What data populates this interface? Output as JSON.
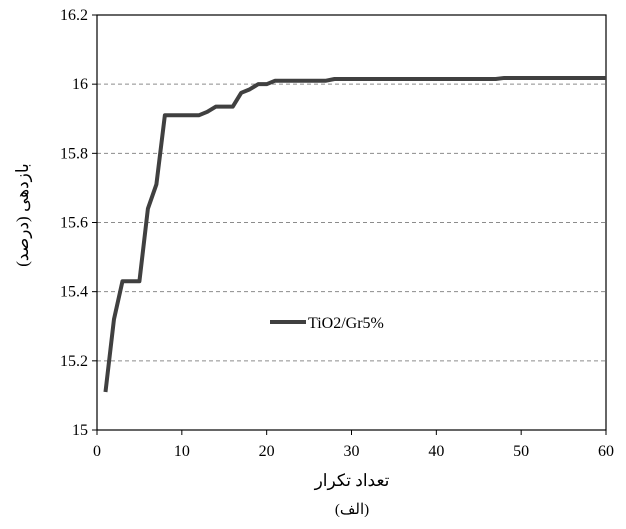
{
  "chart_data": {
    "type": "line",
    "xlabel": "تعداد تکرار",
    "ylabel": "بازدهی (درصد)",
    "caption": "(الف)",
    "xlim": [
      0,
      60
    ],
    "ylim": [
      15,
      16.2
    ],
    "xticks": [
      "0",
      "10",
      "20",
      "30",
      "40",
      "50",
      "60"
    ],
    "yticks": [
      "15",
      "15.2",
      "15.4",
      "15.6",
      "15.8",
      "16",
      "16.2"
    ],
    "grid": "horizontal dashed",
    "legend_position": "center-left",
    "series": [
      {
        "name": "TiO2/Gr5%",
        "color": "#404040",
        "points": [
          [
            1,
            15.11
          ],
          [
            2,
            15.32
          ],
          [
            3,
            15.43
          ],
          [
            4,
            15.43
          ],
          [
            5,
            15.43
          ],
          [
            6,
            15.64
          ],
          [
            7,
            15.71
          ],
          [
            8,
            15.91
          ],
          [
            9,
            15.91
          ],
          [
            10,
            15.91
          ],
          [
            11,
            15.91
          ],
          [
            12,
            15.91
          ],
          [
            13,
            15.92
          ],
          [
            14,
            15.935
          ],
          [
            15,
            15.935
          ],
          [
            16,
            15.935
          ],
          [
            17,
            15.975
          ],
          [
            18,
            15.985
          ],
          [
            19,
            16.0
          ],
          [
            20,
            16.0
          ],
          [
            21,
            16.01
          ],
          [
            22,
            16.01
          ],
          [
            23,
            16.01
          ],
          [
            24,
            16.01
          ],
          [
            25,
            16.01
          ],
          [
            26,
            16.01
          ],
          [
            27,
            16.01
          ],
          [
            28,
            16.015
          ],
          [
            30,
            16.015
          ],
          [
            35,
            16.015
          ],
          [
            40,
            16.015
          ],
          [
            45,
            16.015
          ],
          [
            47,
            16.015
          ],
          [
            48,
            16.018
          ],
          [
            55,
            16.018
          ],
          [
            60,
            16.018
          ]
        ]
      }
    ]
  }
}
